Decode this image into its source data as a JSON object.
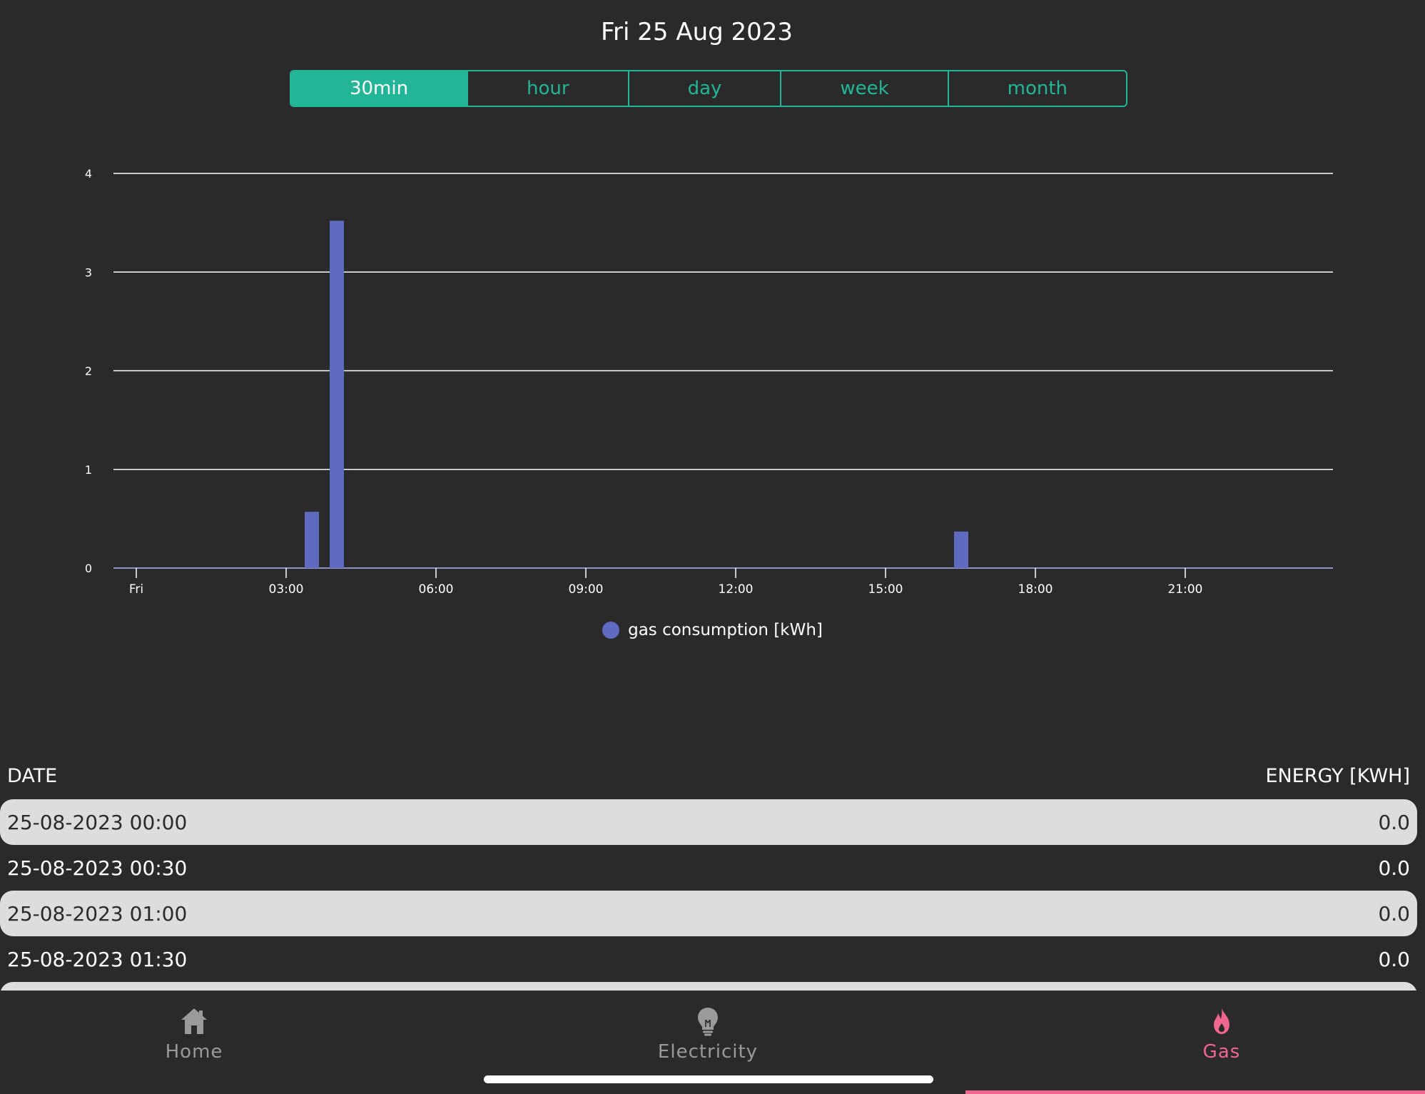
{
  "header": {
    "date_title": "Fri 25 Aug 2023"
  },
  "period_selector": {
    "options": [
      "30min",
      "hour",
      "day",
      "week",
      "month"
    ],
    "selected": "30min"
  },
  "colors": {
    "accent": "#22b597",
    "bar": "#5f6bc1",
    "active_tab": "#f0668e",
    "background": "#2a2a2a",
    "row_alt": "#dddddd"
  },
  "chart_data": {
    "type": "bar",
    "title": "",
    "xlabel": "",
    "ylabel": "",
    "ylim": [
      0,
      4
    ],
    "yticks": [
      "0",
      "1",
      "2",
      "3",
      "4"
    ],
    "xticks": [
      "Fri",
      "03:00",
      "06:00",
      "09:00",
      "12:00",
      "15:00",
      "18:00",
      "21:00"
    ],
    "grid": true,
    "legend_position": "bottom",
    "series": [
      {
        "name": "gas consumption [kWh]",
        "color": "#5f6bc1",
        "points": [
          {
            "time": "03:30",
            "value": 0.57
          },
          {
            "time": "04:00",
            "value": 3.52
          },
          {
            "time": "16:30",
            "value": 0.37
          }
        ]
      }
    ]
  },
  "legend": {
    "label": "gas consumption [kWh]"
  },
  "table": {
    "col_date": "DATE",
    "col_energy": "ENERGY [KWH]",
    "rows": [
      {
        "date": "25-08-2023 00:00",
        "energy": "0.0"
      },
      {
        "date": "25-08-2023 00:30",
        "energy": "0.0"
      },
      {
        "date": "25-08-2023 01:00",
        "energy": "0.0"
      },
      {
        "date": "25-08-2023 01:30",
        "energy": "0.0"
      }
    ]
  },
  "nav": {
    "home": "Home",
    "electricity": "Electricity",
    "gas": "Gas",
    "active": "Gas",
    "home_icon": "house-icon",
    "electricity_icon": "lightbulb-icon",
    "gas_icon": "flame-icon"
  }
}
